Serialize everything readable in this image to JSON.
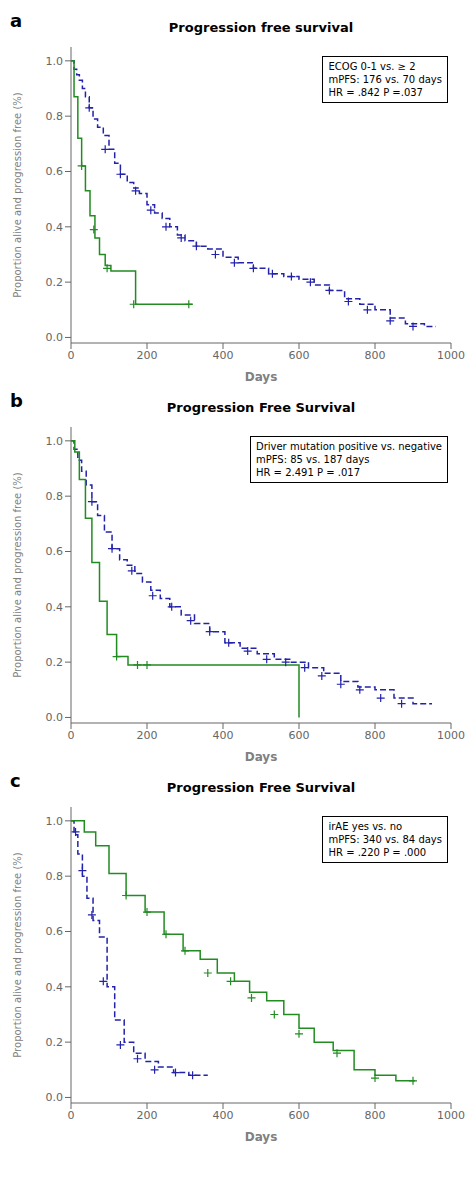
{
  "chart_data": [
    {
      "type": "line",
      "label": "a",
      "title": "Progression free survival",
      "annotation": "ECOG 0-1 vs. ≥ 2\nmPFS: 176 vs. 70 days\nHR = .842 P =.037",
      "xlabel": "Days",
      "ylabel": "Proportion alive and progression free (%)",
      "xlim": [
        0,
        1000
      ],
      "ylim": [
        -0.02,
        1.05
      ],
      "xticks": [
        0,
        200,
        400,
        600,
        800,
        1000
      ],
      "yticks": [
        {
          "value": 0.0,
          "label": "0.0"
        },
        0.2,
        0.4,
        0.6,
        0.8,
        {
          "value": 1.0,
          "label": "1.0"
        }
      ],
      "grid": false,
      "series": [
        {
          "type": "step",
          "color": "#2222AA",
          "line_style": "dashed",
          "x": [
            0,
            8,
            15,
            22,
            30,
            38,
            48,
            58,
            70,
            85,
            100,
            115,
            130,
            148,
            165,
            180,
            200,
            220,
            240,
            260,
            280,
            300,
            330,
            360,
            400,
            440,
            480,
            520,
            560,
            600,
            640,
            680,
            720,
            760,
            800,
            840,
            880,
            930,
            960
          ],
          "values": [
            1.0,
            0.97,
            0.95,
            0.93,
            0.9,
            0.87,
            0.83,
            0.79,
            0.76,
            0.73,
            0.68,
            0.63,
            0.59,
            0.56,
            0.54,
            0.52,
            0.48,
            0.45,
            0.43,
            0.4,
            0.37,
            0.35,
            0.33,
            0.32,
            0.29,
            0.27,
            0.25,
            0.23,
            0.22,
            0.21,
            0.19,
            0.17,
            0.14,
            0.12,
            0.1,
            0.07,
            0.05,
            0.04,
            0.04
          ]
        },
        {
          "type": "scatter",
          "color": "#2222AA",
          "marker": "plus",
          "x": [
            48,
            90,
            130,
            170,
            210,
            250,
            290,
            330,
            380,
            430,
            480,
            530,
            580,
            630,
            680,
            730,
            780,
            840,
            900
          ],
          "values": [
            0.83,
            0.68,
            0.59,
            0.53,
            0.46,
            0.4,
            0.36,
            0.33,
            0.3,
            0.27,
            0.25,
            0.23,
            0.22,
            0.2,
            0.17,
            0.13,
            0.1,
            0.06,
            0.04
          ]
        },
        {
          "type": "step",
          "color": "#228B22",
          "line_style": "solid",
          "x": [
            0,
            8,
            18,
            28,
            38,
            50,
            63,
            75,
            90,
            105,
            130,
            170,
            215,
            260,
            320
          ],
          "values": [
            1.0,
            0.87,
            0.72,
            0.62,
            0.53,
            0.44,
            0.36,
            0.3,
            0.26,
            0.24,
            0.24,
            0.12,
            0.12,
            0.12,
            0.12
          ]
        },
        {
          "type": "scatter",
          "color": "#228B22",
          "marker": "plus",
          "x": [
            28,
            60,
            95,
            165,
            310
          ],
          "values": [
            0.62,
            0.39,
            0.25,
            0.12,
            0.12
          ]
        }
      ]
    },
    {
      "type": "line",
      "label": "b",
      "title": "Progression Free Survival",
      "annotation": "Driver mutation positive vs. negative\nmPFS: 85 vs. 187 days\nHR = 2.491 P = .017",
      "xlabel": "Days",
      "ylabel": "Proportion alive and progression free (%)",
      "xlim": [
        0,
        1000
      ],
      "ylim": [
        -0.02,
        1.05
      ],
      "xticks": [
        0,
        200,
        400,
        600,
        800,
        1000
      ],
      "yticks": [
        {
          "value": 0.0,
          "label": "0.0"
        },
        0.2,
        0.4,
        0.6,
        0.8,
        {
          "value": 1.0,
          "label": "1.0"
        }
      ],
      "grid": false,
      "series": [
        {
          "type": "step",
          "color": "#2222AA",
          "line_style": "dashed",
          "x": [
            0,
            8,
            18,
            28,
            40,
            55,
            70,
            88,
            108,
            128,
            148,
            168,
            188,
            210,
            235,
            260,
            290,
            325,
            365,
            405,
            445,
            490,
            535,
            580,
            625,
            665,
            710,
            755,
            800,
            850,
            900,
            950
          ],
          "values": [
            1.0,
            0.97,
            0.93,
            0.89,
            0.84,
            0.78,
            0.73,
            0.67,
            0.61,
            0.57,
            0.55,
            0.52,
            0.49,
            0.46,
            0.43,
            0.4,
            0.37,
            0.34,
            0.31,
            0.27,
            0.25,
            0.23,
            0.21,
            0.2,
            0.18,
            0.16,
            0.13,
            0.11,
            0.1,
            0.07,
            0.05,
            0.05
          ]
        },
        {
          "type": "scatter",
          "color": "#2222AA",
          "marker": "plus",
          "x": [
            55,
            108,
            160,
            215,
            265,
            315,
            365,
            415,
            465,
            515,
            565,
            615,
            660,
            710,
            760,
            815,
            870
          ],
          "values": [
            0.78,
            0.61,
            0.53,
            0.44,
            0.4,
            0.35,
            0.31,
            0.27,
            0.24,
            0.21,
            0.2,
            0.18,
            0.15,
            0.12,
            0.1,
            0.07,
            0.05
          ]
        },
        {
          "type": "step",
          "color": "#228B22",
          "line_style": "solid",
          "x": [
            0,
            10,
            22,
            38,
            55,
            75,
            95,
            120,
            150,
            175,
            200,
            575,
            600
          ],
          "values": [
            1.0,
            0.96,
            0.86,
            0.72,
            0.56,
            0.42,
            0.3,
            0.22,
            0.19,
            0.19,
            0.19,
            0.19,
            0.0
          ]
        },
        {
          "type": "scatter",
          "color": "#228B22",
          "marker": "plus",
          "x": [
            120,
            175,
            200
          ],
          "values": [
            0.22,
            0.19,
            0.19
          ]
        }
      ]
    },
    {
      "type": "line",
      "label": "c",
      "title": "Progression Free Survival",
      "annotation": "irAE yes vs. no\nmPFS: 340 vs. 84 days\nHR = .220 P = .000",
      "xlabel": "Days",
      "ylabel": "Proportion alive and progression free (%)",
      "xlim": [
        0,
        1000
      ],
      "ylim": [
        -0.02,
        1.05
      ],
      "xticks": [
        0,
        200,
        400,
        600,
        800,
        1000
      ],
      "yticks": [
        {
          "value": 0.0,
          "label": "0.0"
        },
        0.2,
        0.4,
        0.6,
        0.8,
        {
          "value": 1.0,
          "label": "1.0"
        }
      ],
      "grid": false,
      "series": [
        {
          "type": "step",
          "color": "#2222AA",
          "line_style": "dashed",
          "x": [
            0,
            8,
            18,
            30,
            42,
            58,
            75,
            95,
            115,
            140,
            165,
            195,
            230,
            270,
            310,
            340,
            360
          ],
          "values": [
            1.0,
            0.95,
            0.88,
            0.8,
            0.72,
            0.64,
            0.58,
            0.4,
            0.28,
            0.2,
            0.16,
            0.13,
            0.11,
            0.09,
            0.08,
            0.08,
            0.08
          ]
        },
        {
          "type": "scatter",
          "color": "#2222AA",
          "marker": "plus",
          "x": [
            12,
            30,
            55,
            85,
            130,
            175,
            220,
            275,
            320
          ],
          "values": [
            0.96,
            0.82,
            0.66,
            0.42,
            0.19,
            0.14,
            0.1,
            0.09,
            0.08
          ]
        },
        {
          "type": "step",
          "color": "#228B22",
          "line_style": "solid",
          "x": [
            0,
            12,
            35,
            65,
            100,
            145,
            195,
            245,
            295,
            340,
            385,
            430,
            470,
            515,
            560,
            600,
            640,
            690,
            745,
            800,
            855,
            905
          ],
          "values": [
            1.0,
            1.0,
            0.96,
            0.91,
            0.81,
            0.73,
            0.67,
            0.59,
            0.53,
            0.5,
            0.45,
            0.42,
            0.38,
            0.35,
            0.3,
            0.25,
            0.2,
            0.17,
            0.1,
            0.08,
            0.06,
            0.06
          ]
        },
        {
          "type": "scatter",
          "color": "#228B22",
          "marker": "plus",
          "x": [
            145,
            200,
            250,
            300,
            360,
            420,
            475,
            535,
            600,
            700,
            800,
            900
          ],
          "values": [
            0.73,
            0.67,
            0.59,
            0.53,
            0.45,
            0.42,
            0.36,
            0.3,
            0.23,
            0.16,
            0.07,
            0.06
          ]
        }
      ]
    }
  ]
}
